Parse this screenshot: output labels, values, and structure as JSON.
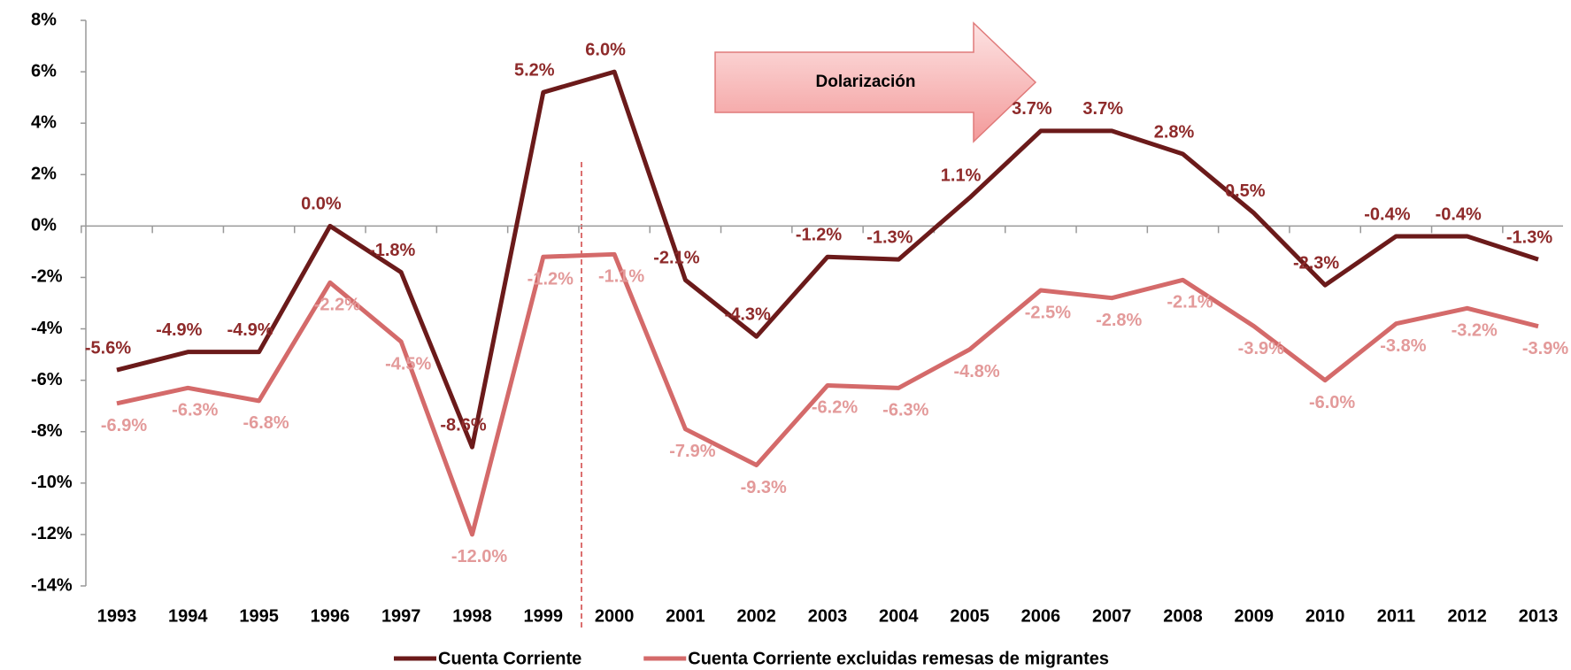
{
  "chart_data": {
    "type": "line",
    "annotation": "Dolarización",
    "categories": [
      "1993",
      "1994",
      "1995",
      "1996",
      "1997",
      "1998",
      "1999",
      "2000",
      "2001",
      "2002",
      "2003",
      "2004",
      "2005",
      "2006",
      "2007",
      "2008",
      "2009",
      "2010",
      "2011",
      "2012",
      "2013"
    ],
    "series": [
      {
        "name": "Cuenta Corriente",
        "color": "#6b1a1a",
        "label_color": "#8e2a2a",
        "values": [
          -5.6,
          -4.9,
          -4.9,
          0.0,
          -1.8,
          -8.6,
          5.2,
          6.0,
          -2.1,
          -4.3,
          -1.2,
          -1.3,
          1.1,
          3.7,
          3.7,
          2.8,
          0.5,
          -2.3,
          -0.4,
          -0.4,
          -1.3
        ],
        "value_labels": [
          "-5.6%",
          "-4.9%",
          "-4.9%",
          "0.0%",
          "-1.8%",
          "-8.6%",
          "5.2%",
          "6.0%",
          "-2.1%",
          "-4.3%",
          "-1.2%",
          "-1.3%",
          "1.1%",
          "3.7%",
          "3.7%",
          "2.8%",
          "0.5%",
          "-2.3%",
          "-0.4%",
          "-0.4%",
          "-1.3%"
        ]
      },
      {
        "name": "Cuenta Corriente excluidas remesas de migrantes",
        "color": "#d46a6a",
        "label_color": "#e39a9a",
        "values": [
          -6.9,
          -6.3,
          -6.8,
          -2.2,
          -4.5,
          -12.0,
          -1.2,
          -1.1,
          -7.9,
          -9.3,
          -6.2,
          -6.3,
          -4.8,
          -2.5,
          -2.8,
          -2.1,
          -3.9,
          -6.0,
          -3.8,
          -3.2,
          -3.9
        ],
        "value_labels": [
          "-6.9%",
          "-6.3%",
          "-6.8%",
          "-2.2%",
          "-4.5%",
          "-12.0%",
          "-1.2%",
          "-1.1%",
          "-7.9%",
          "-9.3%",
          "-6.2%",
          "-6.3%",
          "-4.8%",
          "-2.5%",
          "-2.8%",
          "-2.1%",
          "-3.9%",
          "-6.0%",
          "-3.8%",
          "-3.2%",
          "-3.9%"
        ]
      }
    ],
    "ylim": [
      -14,
      8
    ],
    "yticks": [
      {
        "value": -14,
        "label": "-14%"
      },
      {
        "value": -12,
        "label": "-12%"
      },
      {
        "value": -10,
        "label": "-10%"
      },
      {
        "value": -8,
        "label": "-8%"
      },
      {
        "value": -6,
        "label": "-6%"
      },
      {
        "value": -4,
        "label": "-4%"
      },
      {
        "value": -2,
        "label": "-2%"
      },
      {
        "value": 0,
        "label": "0%"
      },
      {
        "value": 2,
        "label": "2%"
      },
      {
        "value": 4,
        "label": "4%"
      },
      {
        "value": 6,
        "label": "6%"
      },
      {
        "value": 8,
        "label": "8%"
      }
    ]
  }
}
